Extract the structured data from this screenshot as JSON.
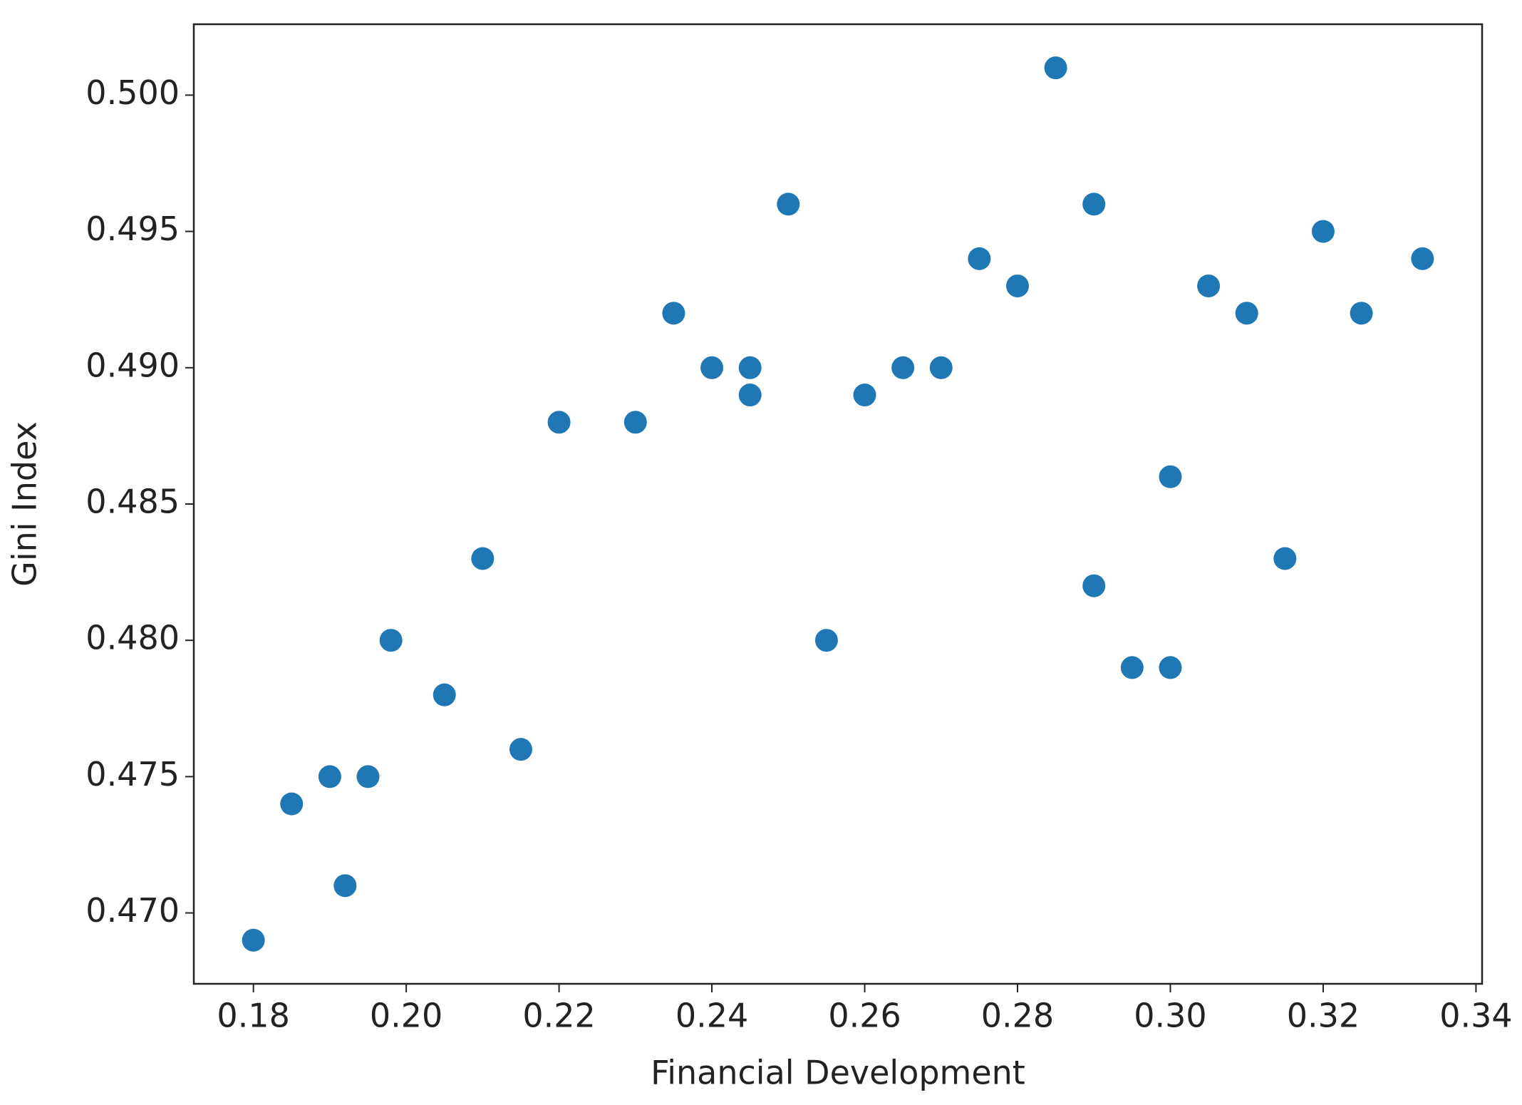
{
  "chart_data": {
    "type": "scatter",
    "x_label": "Financial Development",
    "y_label": "Gini Index",
    "color": "#1f77b4",
    "x": [
      0.18,
      0.185,
      0.19,
      0.192,
      0.195,
      0.198,
      0.205,
      0.21,
      0.215,
      0.22,
      0.23,
      0.235,
      0.24,
      0.245,
      0.245,
      0.25,
      0.255,
      0.26,
      0.265,
      0.27,
      0.275,
      0.28,
      0.285,
      0.29,
      0.29,
      0.295,
      0.3,
      0.3,
      0.305,
      0.31,
      0.315,
      0.32,
      0.325,
      0.333
    ],
    "values": [
      0.469,
      0.474,
      0.475,
      0.471,
      0.475,
      0.48,
      0.478,
      0.483,
      0.476,
      0.488,
      0.488,
      0.492,
      0.49,
      0.49,
      0.489,
      0.496,
      0.48,
      0.489,
      0.49,
      0.49,
      0.494,
      0.493,
      0.501,
      0.496,
      0.482,
      0.479,
      0.486,
      0.479,
      0.493,
      0.492,
      0.483,
      0.495,
      0.492,
      0.494
    ],
    "xlim": [
      0.1722,
      0.3408
    ],
    "ylim": [
      0.4674,
      0.5026
    ],
    "xticks": [
      0.18,
      {
        "value": 0.2,
        "label": "0.20"
      },
      0.22,
      0.24,
      0.26,
      0.28,
      {
        "value": 0.3,
        "label": "0.30"
      },
      0.32,
      0.34
    ],
    "yticks": [
      {
        "value": 0.47,
        "label": "0.470"
      },
      0.475,
      {
        "value": 0.48,
        "label": "0.480"
      },
      0.485,
      {
        "value": 0.49,
        "label": "0.490"
      },
      0.495,
      {
        "value": 0.5,
        "label": "0.500"
      }
    ],
    "grid": false
  }
}
